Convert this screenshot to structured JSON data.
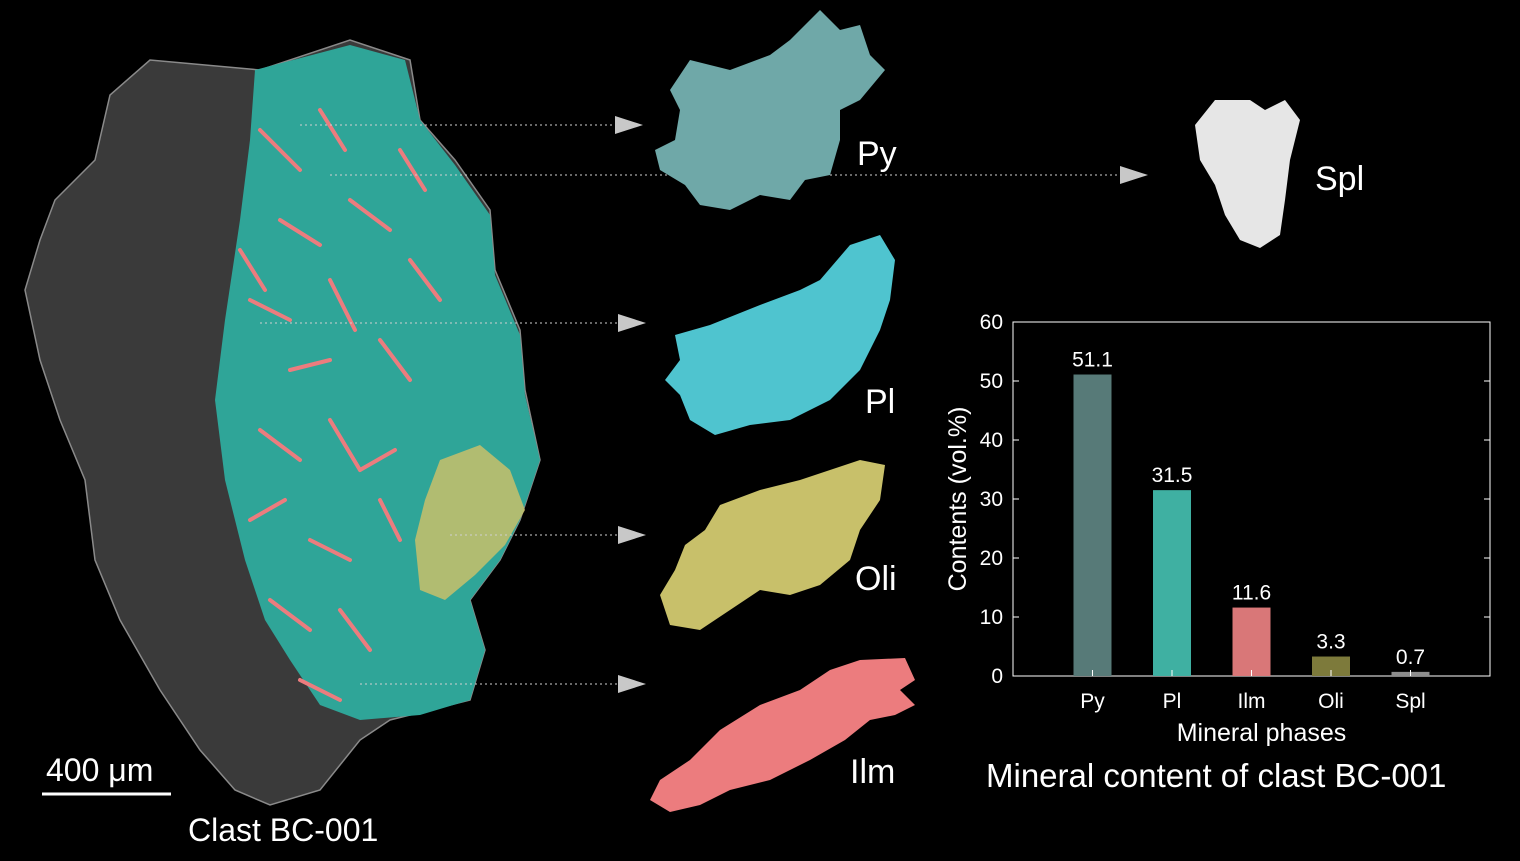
{
  "scalebar": {
    "label": "400 μm"
  },
  "clast": {
    "caption": "Clast BC-001"
  },
  "phase_labels": {
    "py": "Py",
    "pl": "Pl",
    "oli": "Oli",
    "ilm": "Ilm",
    "spl": "Spl"
  },
  "colors": {
    "py": "#577a78",
    "pl": "#3fb0a2",
    "ilm": "#d97778",
    "oli": "#7d7a3b",
    "spl": "#8d8d8d",
    "py_render": "#6fa8a8",
    "pl_render": "#4fc4cf",
    "oli_render": "#c8c06a",
    "ilm_render": "#ec7c7e",
    "spl_render": "#e6e6e6",
    "rock": "#3a3a3a",
    "section": "#2fa598"
  },
  "chart_caption": "Mineral content of clast BC-001",
  "chart_data": {
    "type": "bar",
    "categories": [
      "Py",
      "Pl",
      "Ilm",
      "Oli",
      "Spl"
    ],
    "values": [
      51.1,
      31.5,
      11.6,
      3.3,
      0.7
    ],
    "value_labels": [
      "51.1",
      "31.5",
      "11.6",
      "3.3",
      "0.7"
    ],
    "xlabel": "Mineral phases",
    "ylabel": "Contents (vol.%)",
    "ylim": [
      0,
      60
    ],
    "yticks": [
      0,
      10,
      20,
      30,
      40,
      50,
      60
    ],
    "grid": false
  }
}
